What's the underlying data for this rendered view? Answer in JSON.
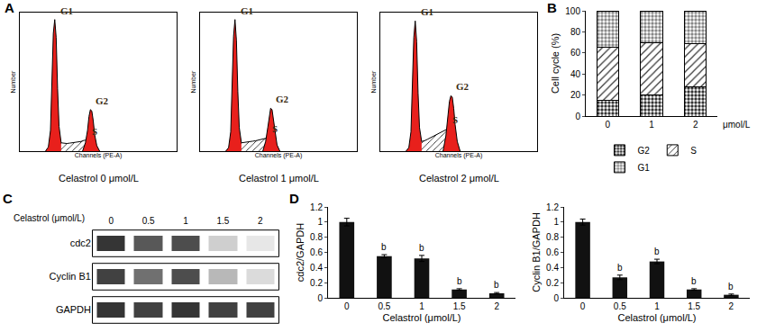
{
  "chart_data": [
    {
      "type": "area",
      "panel": "A",
      "title": "Celastrol 0 μmol/L",
      "xlabel": "Channels (PE-A)",
      "ylabel": "Number",
      "xlim": [
        0,
        220
      ],
      "ylim": [
        0,
        1000
      ],
      "tick_labels": false,
      "series": [
        {
          "name": "G1",
          "color": "#e8201c",
          "marker": "solid",
          "x": [
            36,
            40,
            43,
            45,
            47,
            49,
            51,
            53,
            55,
            58,
            62
          ],
          "values": [
            0,
            30,
            150,
            450,
            850,
            950,
            820,
            450,
            180,
            60,
            20
          ]
        },
        {
          "name": "S",
          "color": "#000000",
          "marker": "hatch",
          "x": [
            58,
            62,
            66,
            70,
            74,
            78,
            82,
            86,
            90,
            94
          ],
          "values": [
            60,
            55,
            55,
            58,
            60,
            62,
            65,
            70,
            78,
            80
          ]
        },
        {
          "name": "G2",
          "color": "#e8201c",
          "marker": "solid",
          "x": [
            88,
            92,
            95,
            97,
            99,
            101,
            103,
            105,
            108,
            112
          ],
          "values": [
            0,
            60,
            150,
            250,
            300,
            290,
            220,
            120,
            40,
            0
          ]
        }
      ]
    },
    {
      "type": "area",
      "title": "Celastrol 1 μmol/L",
      "xlabel": "Channels (PE-A)",
      "ylabel": "Number",
      "xlim": [
        0,
        220
      ],
      "ylim": [
        0,
        1000
      ],
      "tick_labels": false,
      "series": [
        {
          "name": "G1",
          "color": "#e8201c",
          "marker": "solid",
          "x": [
            36,
            40,
            43,
            45,
            47,
            49,
            51,
            53,
            55,
            58,
            62
          ],
          "values": [
            0,
            25,
            140,
            430,
            830,
            950,
            800,
            430,
            170,
            60,
            20
          ]
        },
        {
          "name": "S",
          "color": "#000000",
          "marker": "hatch",
          "x": [
            58,
            62,
            66,
            70,
            74,
            78,
            82,
            86,
            90,
            94
          ],
          "values": [
            60,
            62,
            65,
            68,
            72,
            75,
            80,
            85,
            92,
            95
          ]
        },
        {
          "name": "G2",
          "color": "#e8201c",
          "marker": "solid",
          "x": [
            88,
            92,
            95,
            97,
            99,
            101,
            103,
            105,
            108,
            112
          ],
          "values": [
            0,
            70,
            170,
            260,
            310,
            300,
            230,
            130,
            45,
            0
          ]
        }
      ]
    },
    {
      "type": "area",
      "title": "Celastrol 2 μmol/L",
      "xlabel": "Channels (PE-A)",
      "ylabel": "Number",
      "xlim": [
        0,
        220
      ],
      "ylim": [
        0,
        1000
      ],
      "tick_labels": false,
      "series": [
        {
          "name": "G1",
          "color": "#e8201c",
          "marker": "solid",
          "x": [
            36,
            40,
            43,
            45,
            47,
            49,
            51,
            53,
            55,
            58,
            62
          ],
          "values": [
            0,
            25,
            140,
            420,
            820,
            940,
            790,
            420,
            170,
            70,
            30
          ]
        },
        {
          "name": "S",
          "color": "#000000",
          "marker": "hatch",
          "x": [
            58,
            62,
            66,
            70,
            74,
            78,
            82,
            86,
            90,
            94
          ],
          "values": [
            70,
            75,
            85,
            95,
            105,
            115,
            125,
            140,
            150,
            160
          ]
        },
        {
          "name": "G2",
          "color": "#e8201c",
          "marker": "solid",
          "x": [
            88,
            92,
            95,
            97,
            99,
            101,
            103,
            105,
            108,
            112
          ],
          "values": [
            0,
            110,
            260,
            360,
            400,
            390,
            310,
            190,
            70,
            0
          ]
        }
      ]
    },
    {
      "type": "bar",
      "panel": "B",
      "stacked": true,
      "ylabel": "Cell cycle (%)",
      "xlabel": "μmol/L",
      "categories": [
        "0",
        "1",
        "2"
      ],
      "series": [
        {
          "name": "G2",
          "color": "#333333",
          "marker": "dots",
          "values": [
            15,
            20,
            28
          ]
        },
        {
          "name": "S",
          "color": "#333333",
          "marker": "hatch",
          "values": [
            50,
            50,
            41
          ]
        },
        {
          "name": "G1",
          "color": "#888888",
          "marker": "dots",
          "values": [
            35,
            30,
            31
          ]
        }
      ],
      "ylim": [
        0,
        100
      ],
      "yticks": [
        0,
        20,
        40,
        60,
        80,
        100
      ],
      "legend": "bottom"
    },
    {
      "type": "heatmap",
      "panel": "C",
      "xlabel": "Celastrol (μmol/L)",
      "categories": [
        "0",
        "0.5",
        "1",
        "1.5",
        "2"
      ],
      "rows": [
        "cdc2",
        "Cyclin B1",
        "GAPDH"
      ],
      "intensity": [
        [
          0.85,
          0.7,
          0.75,
          0.2,
          0.1
        ],
        [
          0.8,
          0.6,
          0.75,
          0.3,
          0.15
        ],
        [
          0.85,
          0.8,
          0.85,
          0.8,
          0.8
        ]
      ],
      "zlim": [
        0,
        1
      ]
    },
    {
      "type": "bar",
      "panel": "D",
      "xlabel": "Celastrol (μmol/L)",
      "ylabel": "cdc2/GAPDH",
      "categories": [
        "0",
        "0.5",
        "1",
        "1.5",
        "2"
      ],
      "values": [
        1,
        0.55,
        0.52,
        0.11,
        0.06
      ],
      "errors": [
        0.05,
        0.02,
        0.04,
        0.01,
        0.01
      ],
      "annotations": [
        null,
        "b",
        "b",
        "b",
        "b"
      ],
      "color": "#111111",
      "ylim": [
        0,
        1.2
      ],
      "yticks": [
        0,
        0.2,
        0.4,
        0.6,
        0.8,
        1,
        1.2
      ]
    },
    {
      "type": "bar",
      "xlabel": "Celastrol (μmol/L)",
      "ylabel": "Cyclin B1/GAPDH",
      "categories": [
        "0",
        "0.5",
        "1",
        "1.5",
        "2"
      ],
      "values": [
        1,
        0.27,
        0.48,
        0.11,
        0.04
      ],
      "errors": [
        0.04,
        0.03,
        0.03,
        0.01,
        0.01
      ],
      "annotations": [
        null,
        "b",
        "b",
        "b",
        "b"
      ],
      "color": "#111111",
      "ylim": [
        0,
        1.2
      ],
      "yticks": [
        0,
        0.2,
        0.4,
        0.6,
        0.8,
        1,
        1.2
      ]
    }
  ]
}
